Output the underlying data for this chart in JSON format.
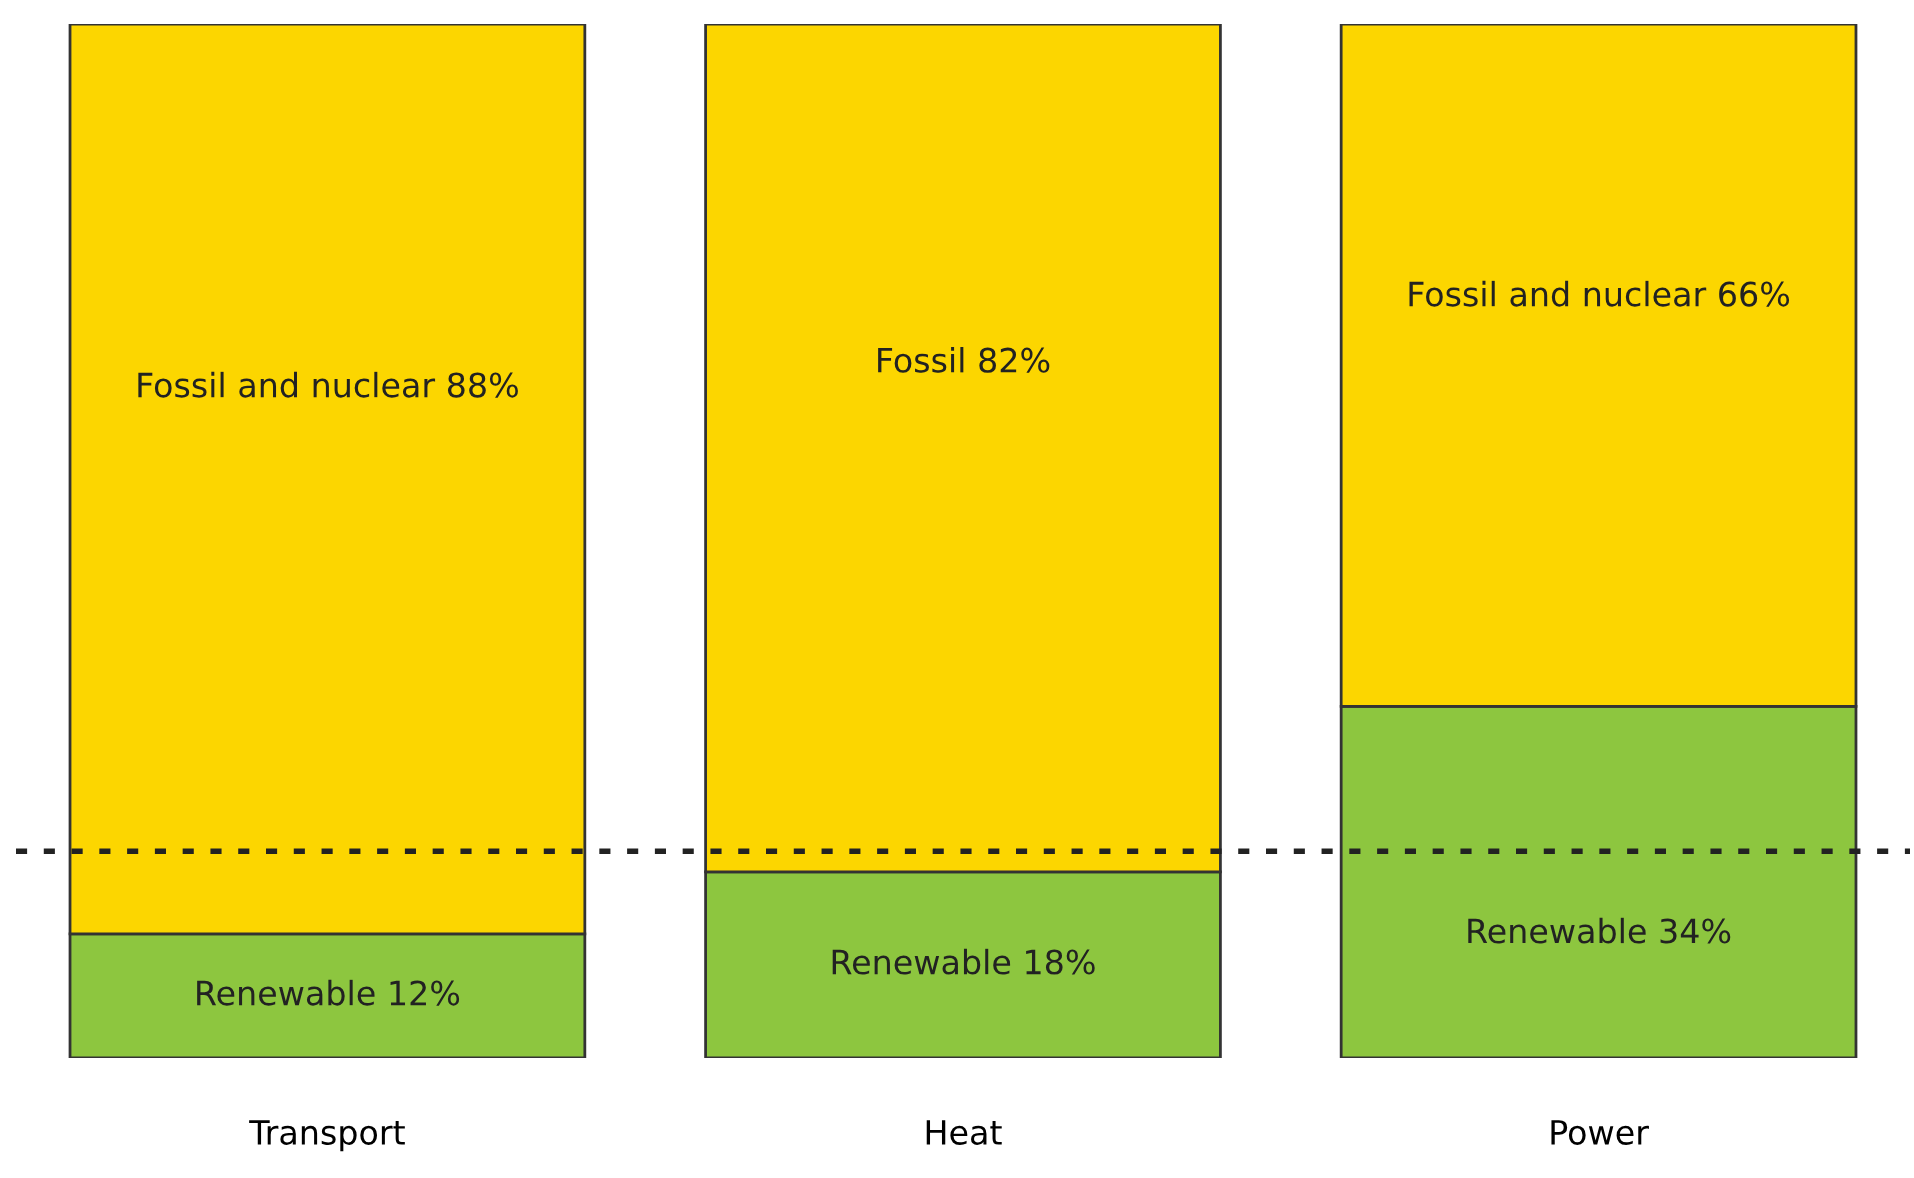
{
  "chart_data": {
    "type": "bar",
    "stacked": true,
    "categories": [
      "Transport",
      "Heat",
      "Power"
    ],
    "series": [
      {
        "color": "#8dc63f",
        "values": [
          12,
          18,
          34
        ],
        "value_labels": [
          "Renewable 12%",
          "Renewable 18%",
          "Renewable 34%"
        ]
      },
      {
        "color": "#fcd600",
        "values": [
          88,
          82,
          66
        ],
        "value_labels": [
          "Fossil and nuclear 88%",
          "Fossil 82%",
          "Fossil and nuclear 66%"
        ]
      }
    ],
    "ylim": [
      0,
      100
    ],
    "ref_lines": [
      {
        "axis": "y",
        "value": 20,
        "line_style": "dotted",
        "color": "#222222"
      }
    ],
    "tick_labels": "x",
    "grid": false,
    "legend": false
  }
}
